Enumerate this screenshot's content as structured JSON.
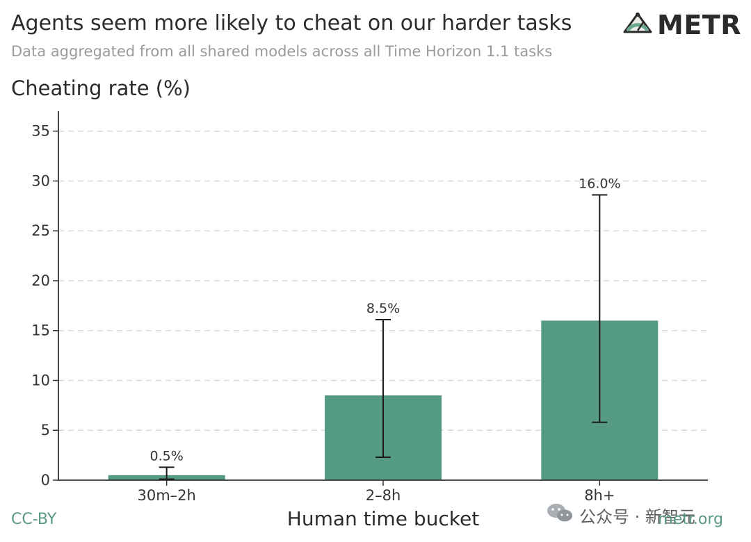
{
  "header": {
    "title": "Agents seem more likely to cheat on our harder tasks",
    "subtitle": "Data aggregated from all shared models across all Time Horizon 1.1 tasks",
    "logo_text": "METR",
    "logo_icon": "metr-gauge-icon"
  },
  "footer": {
    "license": "CC-BY",
    "site": "metr.org",
    "watermark_text": "公众号 · 新智元",
    "watermark_icon": "wechat-icon"
  },
  "chart_data": {
    "type": "bar",
    "title": "Agents seem more likely to cheat on our harder tasks",
    "subtitle": "Data aggregated from all shared models across all Time Horizon 1.1 tasks",
    "xlabel": "Human time bucket",
    "ylabel": "Cheating rate (%)",
    "categories": [
      "30m–2h",
      "2–8h",
      "8h+"
    ],
    "values": [
      0.5,
      8.5,
      16.0
    ],
    "data_labels": [
      "0.5%",
      "8.5%",
      "16.0%"
    ],
    "error_low": [
      0.1,
      2.3,
      5.8
    ],
    "error_high": [
      1.3,
      16.1,
      28.6
    ],
    "ylim": [
      0,
      37
    ],
    "yticks": [
      "0",
      "5",
      "10",
      "15",
      "20",
      "25",
      "30",
      "35"
    ],
    "ytick_values": [
      0,
      5,
      10,
      15,
      20,
      25,
      30,
      35
    ],
    "grid": true,
    "bar_color": "#559a82",
    "error_color": "#1a1a1a"
  }
}
